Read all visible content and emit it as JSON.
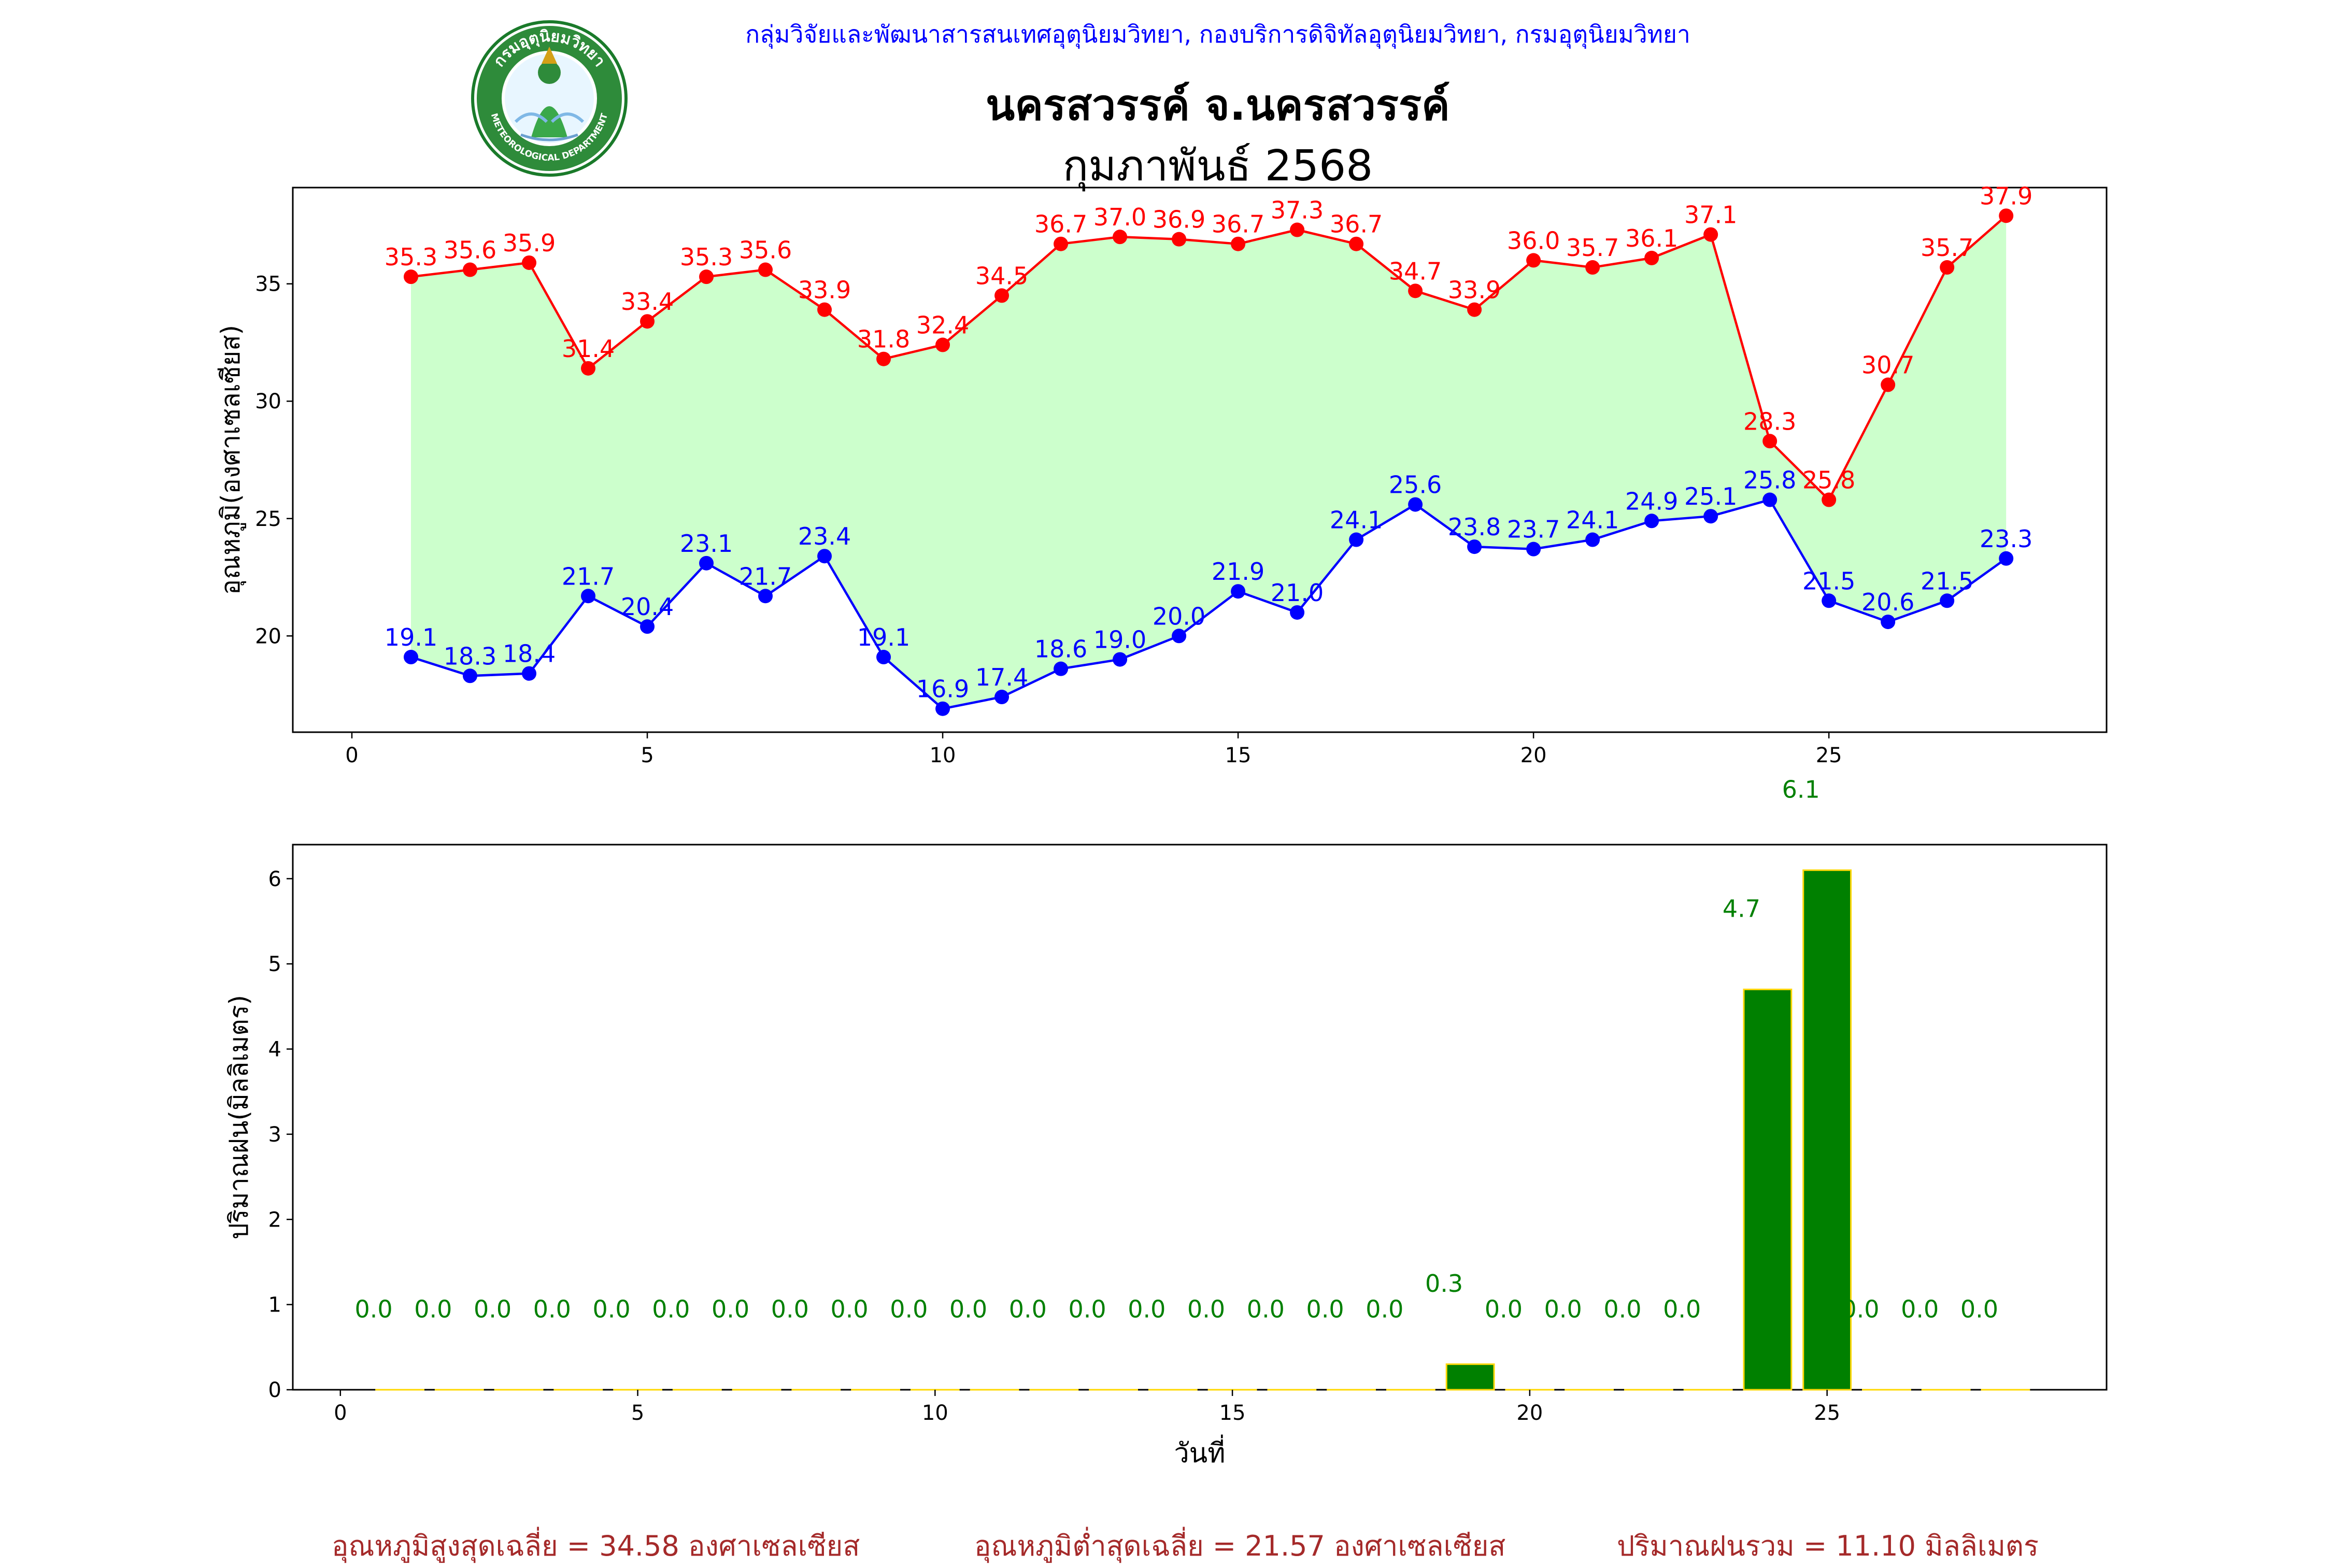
{
  "header": {
    "org": "กลุ่มวิจัยและพัฒนาสารสนเทศอุตุนิยมวิทยา, กองบริการดิจิทัลอุตุนิยมวิทยา, กรมอุตุนิยมวิทยา",
    "station": "นครสวรรค์  จ.นครสวรรค์",
    "month": "กุมภาพันธ์ 2568",
    "logo_text": "กรมอุตุนิยมวิทยา",
    "logo_subtext": "METEOROLOGICAL DEPARTMENT"
  },
  "colors": {
    "max_temp": "#ff0000",
    "min_temp": "#0000ff",
    "fill": "#ccffcc",
    "rain_bar": "#008000",
    "rain_edge": "#ffd700",
    "rain_label": "#008000",
    "summary": "#a52a2a"
  },
  "chart_data": [
    {
      "type": "line",
      "ylabel": "อุณหภูมิ(องศาเซลเซียส)",
      "xlim": [
        -1,
        29.7
      ],
      "ylim": [
        15.9,
        39.1
      ],
      "xticks": [
        0,
        5,
        10,
        15,
        20,
        25
      ],
      "yticks": [
        20,
        25,
        30,
        35
      ],
      "x": [
        1,
        2,
        3,
        4,
        5,
        6,
        7,
        8,
        9,
        10,
        11,
        12,
        13,
        14,
        15,
        16,
        17,
        18,
        19,
        20,
        21,
        22,
        23,
        24,
        25,
        26,
        27,
        28
      ],
      "series": [
        {
          "key": "max",
          "values": [
            35.3,
            35.6,
            35.9,
            31.4,
            33.4,
            35.3,
            35.6,
            33.9,
            31.8,
            32.4,
            34.5,
            36.7,
            37.0,
            36.9,
            36.7,
            37.3,
            36.7,
            34.7,
            33.9,
            36.0,
            35.7,
            36.1,
            37.1,
            28.3,
            25.8,
            30.7,
            35.7,
            37.9
          ]
        },
        {
          "key": "min",
          "values": [
            19.1,
            18.3,
            18.4,
            21.7,
            20.4,
            23.1,
            21.7,
            23.4,
            19.1,
            16.9,
            17.4,
            18.6,
            19.0,
            20.0,
            21.9,
            21.0,
            24.1,
            25.6,
            23.8,
            23.7,
            24.1,
            24.9,
            25.1,
            25.8,
            21.5,
            20.6,
            21.5,
            23.3
          ]
        }
      ]
    },
    {
      "type": "bar",
      "xlabel": "วันที่",
      "ylabel": "ปริมาณฝน(มิลลิเมตร)",
      "xlim": [
        -0.8,
        29.7
      ],
      "ylim": [
        0,
        6.4
      ],
      "xticks": [
        0,
        5,
        10,
        15,
        20,
        25
      ],
      "yticks": [
        0,
        1,
        2,
        3,
        4,
        5,
        6
      ],
      "x": [
        1,
        2,
        3,
        4,
        5,
        6,
        7,
        8,
        9,
        10,
        11,
        12,
        13,
        14,
        15,
        16,
        17,
        18,
        19,
        20,
        21,
        22,
        23,
        24,
        25,
        26,
        27,
        28
      ],
      "values": [
        0.0,
        0.0,
        0.0,
        0.0,
        0.0,
        0.0,
        0.0,
        0.0,
        0.0,
        0.0,
        0.0,
        0.0,
        0.0,
        0.0,
        0.0,
        0.0,
        0.0,
        0.0,
        0.3,
        0.0,
        0.0,
        0.0,
        0.0,
        4.7,
        6.1,
        0.0,
        0.0,
        0.0
      ]
    }
  ],
  "summary": {
    "avg_max": "อุณหภูมิสูงสุดเฉลี่ย = 34.58 องศาเซลเซียส",
    "avg_min": "อุณหภูมิต่ำสุดเฉลี่ย = 21.57 องศาเซลเซียส",
    "total_rain": "ปริมาณฝนรวม = 11.10 มิลลิเมตร"
  }
}
